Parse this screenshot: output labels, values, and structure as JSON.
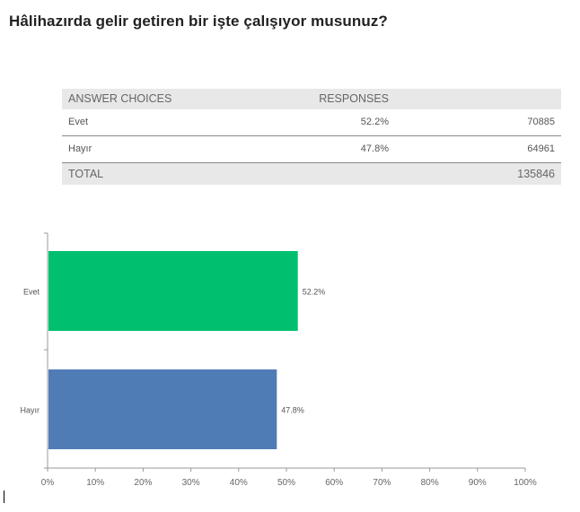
{
  "question": "Hâlihazırda gelir getiren bir işte çalışıyor musunuz?",
  "table": {
    "header": {
      "choices": "ANSWER CHOICES",
      "responses": "RESPONSES"
    },
    "rows": [
      {
        "label": "Evet",
        "percent": "52.2%",
        "count": "70885"
      },
      {
        "label": "Hayır",
        "percent": "47.8%",
        "count": "64961"
      }
    ],
    "total": {
      "label": "TOTAL",
      "count": "135846"
    }
  },
  "chart_data": {
    "type": "bar",
    "orientation": "horizontal",
    "categories": [
      "Evet",
      "Hayır"
    ],
    "values": [
      52.2,
      47.8
    ],
    "value_labels": [
      "52.2%",
      "47.8%"
    ],
    "colors": [
      "#00bf6f",
      "#507cb6"
    ],
    "xlim": [
      0,
      100
    ],
    "xticks": [
      "0%",
      "10%",
      "20%",
      "30%",
      "40%",
      "50%",
      "60%",
      "70%",
      "80%",
      "90%",
      "100%"
    ],
    "grid": false
  }
}
